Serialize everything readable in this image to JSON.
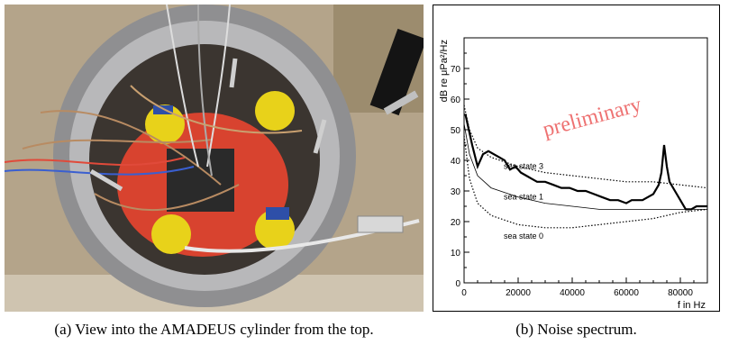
{
  "figure": {
    "caption_a": "(a) View into the AMADEUS cylinder from the top.",
    "caption_b": "(b) Noise spectrum."
  },
  "photo": {
    "colors": {
      "background": "#b4a48a",
      "metal_rim": "#8f8f91",
      "interior": "#3b3530",
      "red_board": "#d8432f",
      "sensor_yellow": "#e8d21a",
      "sensor_blue": "#2e4fa8",
      "wires": "#b88b62"
    }
  },
  "chart_data": {
    "type": "line",
    "xlabel": "f in Hz",
    "ylabel": "dB re μPa²/Hz",
    "xlim": [
      0,
      90000
    ],
    "ylim": [
      0,
      80
    ],
    "xticks": [
      0,
      20000,
      40000,
      60000,
      80000
    ],
    "yticks": [
      0,
      10,
      20,
      30,
      40,
      50,
      60,
      70
    ],
    "watermark": "preliminary",
    "watermark_color": "#ee7272",
    "series": [
      {
        "style": "measured",
        "x": [
          500,
          1500,
          3000,
          5000,
          7000,
          9000,
          11000,
          13000,
          15000,
          17000,
          19000,
          21000,
          23000,
          25000,
          27000,
          30000,
          33000,
          36000,
          39000,
          42000,
          45000,
          48000,
          51000,
          54000,
          57000,
          60000,
          62000,
          64000,
          66000,
          68000,
          70000,
          72000,
          73000,
          74000,
          75000,
          76000,
          78000,
          80000,
          82000,
          84000,
          86000,
          88000,
          90000
        ],
        "y": [
          55,
          51,
          45,
          38,
          42,
          43,
          42,
          41,
          40,
          37,
          38,
          36,
          35,
          34,
          33,
          33,
          32,
          31,
          31,
          30,
          30,
          29,
          28,
          27,
          27,
          26,
          27,
          27,
          27,
          28,
          29,
          32,
          36,
          45,
          38,
          33,
          30,
          27,
          24,
          24,
          25,
          25,
          25
        ]
      },
      {
        "name": "sea state 3",
        "style": "dotted",
        "x": [
          0,
          2000,
          5000,
          10000,
          20000,
          30000,
          40000,
          50000,
          60000,
          70000,
          80000,
          90000
        ],
        "y": [
          58,
          50,
          44,
          41,
          38,
          36,
          35,
          34,
          33,
          33,
          32,
          31
        ]
      },
      {
        "name": "sea state 1",
        "style": "thin",
        "x": [
          0,
          2000,
          5000,
          10000,
          20000,
          30000,
          40000,
          50000,
          60000,
          70000,
          80000,
          90000
        ],
        "y": [
          52,
          42,
          35,
          31,
          28,
          26,
          25,
          24,
          24,
          24,
          24,
          24
        ]
      },
      {
        "name": "sea state 0",
        "style": "dotted",
        "x": [
          0,
          2000,
          5000,
          10000,
          20000,
          30000,
          40000,
          50000,
          60000,
          70000,
          80000,
          90000
        ],
        "y": [
          48,
          34,
          26,
          22,
          19,
          18,
          18,
          19,
          20,
          21,
          23,
          24
        ]
      }
    ]
  }
}
